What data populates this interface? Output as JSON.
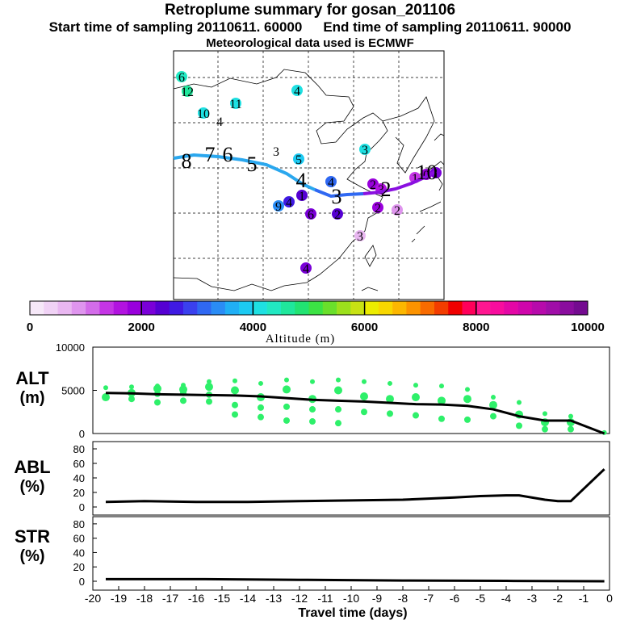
{
  "header": {
    "title": "Retroplume summary for gosan_201106",
    "start_label": "Start time of sampling 20110611. 60000",
    "end_label": "End time of sampling 20110611. 90000",
    "met_label": "Meteorological data used is ECMWF"
  },
  "colorbar": {
    "ticks": [
      "0",
      "2000",
      "4000",
      "6000",
      "8000",
      "10000"
    ],
    "label": "Altitude (m)",
    "colors": [
      "#f6e8f8",
      "#f0d2f5",
      "#e9b7f1",
      "#df95ee",
      "#d36ce9",
      "#c535e5",
      "#b213e0",
      "#9900dc",
      "#7a00d8",
      "#5500d2",
      "#3f1ae2",
      "#3a40ee",
      "#2f68f2",
      "#2a8cf5",
      "#20aff5",
      "#1ccaf2",
      "#1ee0e2",
      "#22e8c2",
      "#1fe79c",
      "#22e372",
      "#3ce244",
      "#6adf2b",
      "#9ce01c",
      "#c8e214",
      "#ecec00",
      "#f8d700",
      "#fcb700",
      "#fc9300",
      "#f86b00",
      "#f33d00",
      "#f00000",
      "#ff005a",
      "#ff1790",
      "#f80d9e",
      "#e407a6",
      "#cf06ab",
      "#b70aab",
      "#a00ea8",
      "#8a0d9e",
      "#740b90"
    ]
  },
  "map": {
    "trajectory_numbers": [
      "0",
      "1",
      "2",
      "3",
      "4",
      "5",
      "6",
      "7",
      "8"
    ],
    "plume_labels": [
      "6",
      "12",
      "10",
      "11",
      "4",
      "5",
      "3",
      "3",
      "4",
      "2",
      "1",
      "4",
      "9",
      "6",
      "2",
      "2",
      "2",
      "3",
      "4",
      "4",
      "3",
      "1",
      "0",
      "1"
    ]
  },
  "panels": {
    "alt_label": [
      "ALT",
      "(m)"
    ],
    "abl_label": [
      "ABL",
      "(%)"
    ],
    "str_label": [
      "STR",
      "(%)"
    ],
    "alt_ticks": [
      "10000",
      "5000",
      "0"
    ],
    "pct_ticks": [
      "80",
      "60",
      "40",
      "20",
      "0"
    ],
    "x_ticks": [
      "-20",
      "-19",
      "-18",
      "-17",
      "-16",
      "-15",
      "-14",
      "-13",
      "-12",
      "-11",
      "-10",
      "-9",
      "-8",
      "-7",
      "-6",
      "-5",
      "-4",
      "-3",
      "-2",
      "-1",
      "0"
    ],
    "x_label": "Travel time (days)"
  },
  "chart_data": [
    {
      "type": "line",
      "title": "ALT (m)",
      "xlabel": "Travel time (days)",
      "ylabel": "ALT (m)",
      "xlim": [
        -20,
        0
      ],
      "ylim": [
        0,
        10000
      ],
      "x": [
        -19.5,
        -18.5,
        -17.5,
        -16.5,
        -15.5,
        -14.5,
        -13.5,
        -12.5,
        -11.5,
        -10.5,
        -9.5,
        -8.5,
        -7.5,
        -6.5,
        -5.5,
        -4.5,
        -3.5,
        -2.5,
        -1.5,
        -0.2
      ],
      "mean_altitude": [
        4700,
        4650,
        4550,
        4500,
        4450,
        4400,
        4300,
        4100,
        3900,
        3800,
        3700,
        3550,
        3400,
        3350,
        3200,
        2800,
        2000,
        1500,
        1500,
        0
      ],
      "clusters": [
        {
          "x": -19.5,
          "y": [
            5300,
            4200
          ]
        },
        {
          "x": -18.5,
          "y": [
            5400,
            4700,
            4000
          ]
        },
        {
          "x": -17.5,
          "y": [
            5500,
            5200,
            4600,
            3600
          ]
        },
        {
          "x": -16.5,
          "y": [
            5600,
            5100,
            4700,
            3800
          ]
        },
        {
          "x": -15.5,
          "y": [
            6000,
            5400,
            4500,
            3700
          ]
        },
        {
          "x": -14.5,
          "y": [
            6100,
            5000,
            3300,
            2200
          ]
        },
        {
          "x": -13.5,
          "y": [
            5800,
            4200,
            3000,
            1900
          ]
        },
        {
          "x": -12.5,
          "y": [
            6200,
            5100,
            3100,
            1500
          ]
        },
        {
          "x": -11.5,
          "y": [
            6000,
            4000,
            2800,
            1400
          ]
        },
        {
          "x": -10.5,
          "y": [
            6200,
            5000,
            2800,
            1200
          ]
        },
        {
          "x": -9.5,
          "y": [
            6000,
            4300,
            2500
          ]
        },
        {
          "x": -8.5,
          "y": [
            5800,
            4000,
            2300
          ]
        },
        {
          "x": -7.5,
          "y": [
            5600,
            4200,
            2100
          ]
        },
        {
          "x": -6.5,
          "y": [
            5500,
            3800,
            1700
          ]
        },
        {
          "x": -5.5,
          "y": [
            5100,
            4000,
            1600
          ]
        },
        {
          "x": -4.5,
          "y": [
            4200,
            3300,
            2000
          ]
        },
        {
          "x": -3.5,
          "y": [
            3600,
            2200,
            900
          ]
        },
        {
          "x": -2.5,
          "y": [
            2300,
            1300,
            500
          ]
        },
        {
          "x": -1.5,
          "y": [
            2000,
            1300,
            500
          ]
        },
        {
          "x": -0.2,
          "y": [
            100
          ]
        }
      ]
    },
    {
      "type": "line",
      "title": "ABL (%)",
      "xlim": [
        -20,
        0
      ],
      "ylim": [
        0,
        90
      ],
      "x": [
        -19.5,
        -18,
        -16,
        -14,
        -12,
        -10,
        -8,
        -6,
        -5,
        -4,
        -3.5,
        -2.5,
        -2,
        -1.5,
        -0.2
      ],
      "values": [
        7,
        8,
        7,
        7,
        8,
        9,
        10,
        13,
        15,
        16,
        16,
        10,
        8,
        8,
        52
      ]
    },
    {
      "type": "line",
      "title": "STR (%)",
      "xlim": [
        -20,
        0
      ],
      "ylim": [
        0,
        90
      ],
      "x": [
        -19.5,
        -16,
        -12,
        -8,
        -4,
        -0.2
      ],
      "values": [
        3,
        3,
        2,
        1,
        0.5,
        0
      ]
    }
  ]
}
